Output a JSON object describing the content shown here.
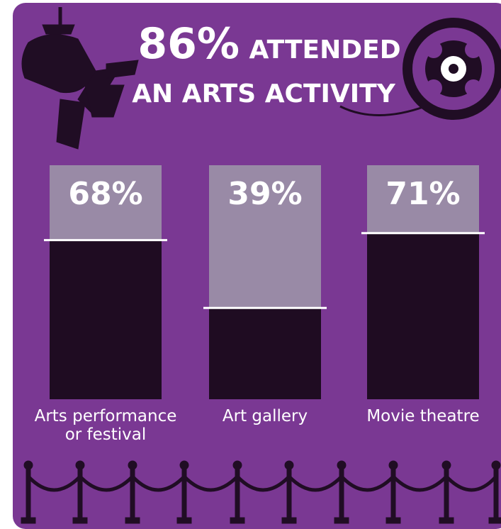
{
  "chart_data": {
    "type": "bar",
    "title_parts": [
      "86%",
      "ATTENDED",
      "AN ARTS ACTIVITY"
    ],
    "categories": [
      "Arts performance or festival",
      "Art gallery",
      "Movie theatre"
    ],
    "values": [
      68,
      39,
      71
    ],
    "value_labels": [
      "68%",
      "39%",
      "71%"
    ],
    "ylim": [
      0,
      100
    ],
    "color": "#1f0c22",
    "track_color": "#998aa6",
    "background": "#7a3893"
  }
}
